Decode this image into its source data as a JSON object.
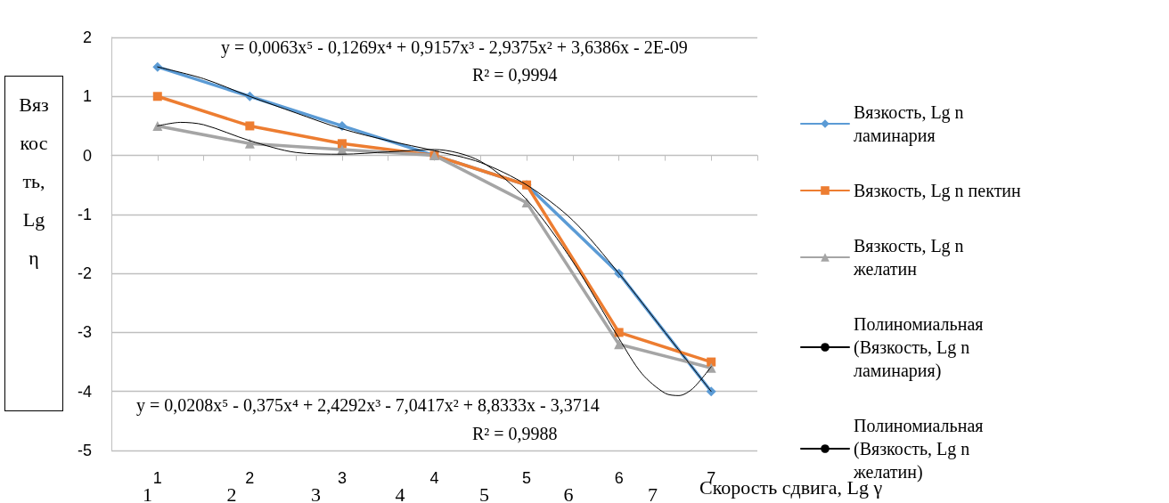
{
  "chart_data": {
    "type": "line",
    "ylabel": "Вязкость, Lg η",
    "xlabel": "Скорость сдвига, Lg γ",
    "x": [
      1,
      2,
      3,
      4,
      5,
      6,
      7
    ],
    "series": [
      {
        "name": "Вязкость, Lg n ламинария",
        "color": "#5b9bd5",
        "marker": "diamond",
        "values": [
          1.5,
          1,
          0.5,
          0,
          -0.5,
          -2,
          -4
        ]
      },
      {
        "name": "Вязкость, Lg n пектин",
        "color": "#ed7d31",
        "marker": "square",
        "values": [
          1,
          0.5,
          0.2,
          0,
          -0.5,
          -3,
          -3.5
        ]
      },
      {
        "name": "Вязкость, Lg n желатин",
        "color": "#a5a5a5",
        "marker": "triangle",
        "values": [
          0.5,
          0.2,
          0.1,
          0,
          -0.8,
          -3.2,
          -3.6
        ]
      },
      {
        "name": "Полиномиальная (Вязкость, Lg n ламинария)",
        "color": "#000000",
        "marker": "none",
        "x": [
          1,
          1.5,
          2,
          2.5,
          3,
          3.5,
          4,
          4.5,
          5,
          5.5,
          6,
          6.5,
          7
        ],
        "values": [
          1.5,
          1.3,
          1.0,
          0.72,
          0.45,
          0.25,
          0.08,
          -0.12,
          -0.5,
          -1.1,
          -2.0,
          -3.0,
          -4.0
        ]
      },
      {
        "name": "Полиномиальная (Вязкость, Lg n желатин)",
        "color": "#000000",
        "marker": "none",
        "x": [
          1,
          1.25,
          1.5,
          2,
          2.5,
          3,
          3.5,
          4,
          4.5,
          5,
          5.5,
          6,
          6.25,
          6.5,
          6.65,
          6.8,
          7
        ],
        "values": [
          0.5,
          0.56,
          0.52,
          0.25,
          0.05,
          0.02,
          0.06,
          0.1,
          -0.1,
          -0.75,
          -1.8,
          -3.1,
          -3.7,
          -4.03,
          -4.07,
          -3.95,
          -3.58
        ]
      }
    ],
    "xlim": [
      0.5,
      7.5
    ],
    "xticks": [
      1,
      {
        "value": 1.5,
        "label": null
      },
      2,
      {
        "value": 2.5,
        "label": null
      },
      3,
      {
        "value": 3.5,
        "label": null
      },
      4,
      {
        "value": 4.5,
        "label": null
      },
      5,
      {
        "value": 5.5,
        "label": null
      },
      6,
      {
        "value": 6.5,
        "label": null
      },
      7,
      {
        "value": 7.5,
        "label": null
      }
    ],
    "ylim": [
      -5,
      2
    ],
    "yticks": [
      -5,
      -4,
      -3,
      -2,
      -1,
      0,
      1,
      2
    ],
    "grid": "y",
    "legend": "right",
    "annotations": [
      "y = 0,0063x⁵ - 0,1269x⁴ + 0,9157x³ - 2,9375x² + 3,6386x - 2E-09",
      "R² = 0,9994",
      "y = 0,0208x⁵ - 0,375x⁴ + 2,4292x³ - 7,0417x² + 8,8333x - 3,3714",
      "R² = 0,9988",
      "1 2 3 4 5 6 7"
    ]
  }
}
